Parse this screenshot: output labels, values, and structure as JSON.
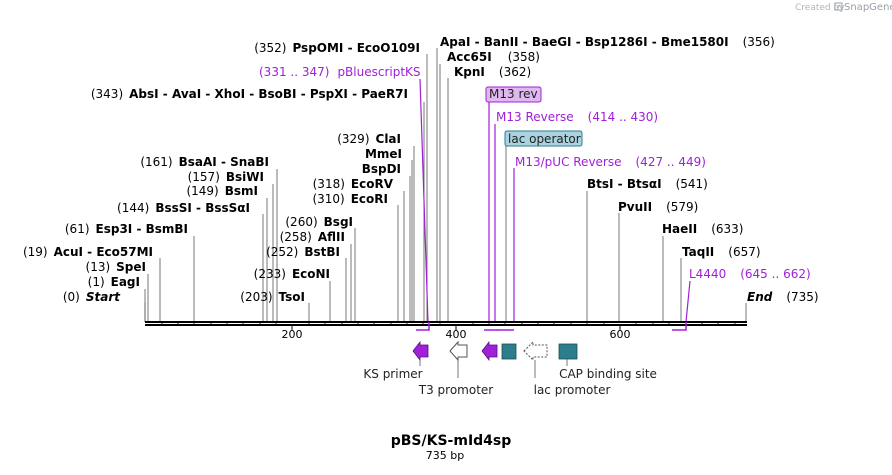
{
  "credit": {
    "text": "Created by",
    "brand": "SnapGene"
  },
  "map": {
    "name": "pBS/KS-mId4sp",
    "length_label": "735 bp"
  },
  "colors": {
    "primer": "#a020d8",
    "feature_teal": "#2e7d8c",
    "white_feature": "#ffffff",
    "m13rev_fill": "#dfb8f0",
    "lacop_fill": "#a9d3e0"
  },
  "ticks": [
    "200",
    "400",
    "600"
  ],
  "sites": [
    {
      "pos": "(0)",
      "name": "Start",
      "kind": "start"
    },
    {
      "pos": "(1)",
      "name": "EagI"
    },
    {
      "pos": "(13)",
      "name": "SpeI"
    },
    {
      "pos": "(19)",
      "name": "AcuI  -  Eco57MI"
    },
    {
      "pos": "(61)",
      "name": "Esp3I  -  BsmBI"
    },
    {
      "pos": "(144)",
      "name": "BssSI  -  BssSαI"
    },
    {
      "pos": "(149)",
      "name": "BsmI"
    },
    {
      "pos": "(157)",
      "name": "BsiWI"
    },
    {
      "pos": "(161)",
      "name": "BsaAI  -  SnaBI"
    },
    {
      "pos": "(203)",
      "name": "TsoI"
    },
    {
      "pos": "(233)",
      "name": "EcoNI"
    },
    {
      "pos": "(252)",
      "name": "BstBI"
    },
    {
      "pos": "(258)",
      "name": "AflII"
    },
    {
      "pos": "(260)",
      "name": "BsgI"
    },
    {
      "pos": "(310)",
      "name": "EcoRI"
    },
    {
      "pos": "(318)",
      "name": "EcoRV"
    },
    {
      "pos": "",
      "name": "BspDI"
    },
    {
      "pos": "",
      "name": "MmeI"
    },
    {
      "pos": "(329)",
      "name": "ClaI"
    },
    {
      "pos": "(343)",
      "name": "AbsI  -  AvaI  -  XhoI  -  BsoBI  -  PspXI  -  PaeR7I"
    },
    {
      "pos": "(352)",
      "name": "PspOMI  -  EcoO109I"
    },
    {
      "name": "ApaI  -  BanII  -  BaeGI  -  Bsp1286I  -  Bme1580I",
      "pos": "(356)"
    },
    {
      "name": "Acc65I",
      "pos": "(358)"
    },
    {
      "name": "KpnI",
      "pos": "(362)"
    },
    {
      "name": "BtsI  -  BtsαI",
      "pos": "(541)"
    },
    {
      "name": "PvuII",
      "pos": "(579)"
    },
    {
      "name": "HaeII",
      "pos": "(633)"
    },
    {
      "name": "TaqII",
      "pos": "(657)"
    },
    {
      "name": "End",
      "pos": "(735)",
      "kind": "end"
    }
  ],
  "primers": [
    {
      "range": "(331 .. 347)",
      "name": "pBluescriptKS"
    },
    {
      "name": "M13 rev",
      "boxed": true
    },
    {
      "name": "M13 Reverse",
      "range": "(414 .. 430)"
    },
    {
      "name": "M13/pUC Reverse",
      "range": "(427 .. 449)"
    },
    {
      "name": "L4440",
      "range": "(645 .. 662)"
    }
  ],
  "boxed_features": [
    {
      "name": "lac operator"
    }
  ],
  "features": [
    {
      "name": "KS primer",
      "type": "primer-arrow"
    },
    {
      "name": "T3 promoter",
      "type": "white-arrow"
    },
    {
      "name": "",
      "type": "primer-arrow"
    },
    {
      "name": "",
      "type": "teal-box"
    },
    {
      "name": "lac promoter",
      "type": "white-arrow-dashed"
    },
    {
      "name": "CAP binding site",
      "type": "teal-box"
    }
  ]
}
